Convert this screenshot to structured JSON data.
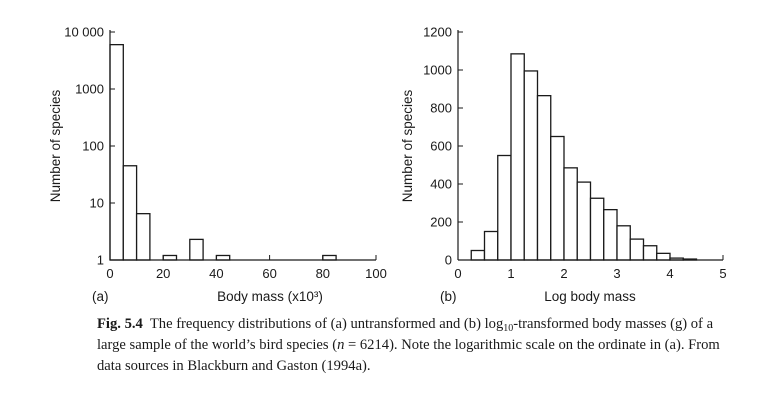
{
  "chart_data": [
    {
      "type": "bar",
      "panel_label": "(a)",
      "xlabel": "Body mass (x10³)",
      "ylabel": "Number of species",
      "yscale": "log",
      "xlim": [
        0,
        100
      ],
      "ylim": [
        1,
        10000
      ],
      "xticks": [
        "0",
        "20",
        "40",
        "60",
        "80",
        "100"
      ],
      "yticks": [
        "1",
        "10",
        "100",
        "1000",
        "10 000"
      ],
      "bins": [
        {
          "x0": 0,
          "x1": 5,
          "value": 6000
        },
        {
          "x0": 5,
          "x1": 10,
          "value": 45
        },
        {
          "x0": 10,
          "x1": 15,
          "value": 6.5
        },
        {
          "x0": 20,
          "x1": 25,
          "value": 1.2
        },
        {
          "x0": 30,
          "x1": 35,
          "value": 2.3
        },
        {
          "x0": 40,
          "x1": 45,
          "value": 1.2
        },
        {
          "x0": 80,
          "x1": 85,
          "value": 1.2
        }
      ]
    },
    {
      "type": "bar",
      "panel_label": "(b)",
      "xlabel": "Log body mass",
      "ylabel": "Number of species",
      "yscale": "linear",
      "xlim": [
        0,
        5
      ],
      "ylim": [
        0,
        1200
      ],
      "xticks": [
        "0",
        "1",
        "2",
        "3",
        "4",
        "5"
      ],
      "yticks": [
        "0",
        "200",
        "400",
        "600",
        "800",
        "1000",
        "1200"
      ],
      "bins": [
        {
          "x0": 0.25,
          "x1": 0.5,
          "value": 50
        },
        {
          "x0": 0.5,
          "x1": 0.75,
          "value": 150
        },
        {
          "x0": 0.75,
          "x1": 1.0,
          "value": 550
        },
        {
          "x0": 1.0,
          "x1": 1.25,
          "value": 1085
        },
        {
          "x0": 1.25,
          "x1": 1.5,
          "value": 995
        },
        {
          "x0": 1.5,
          "x1": 1.75,
          "value": 865
        },
        {
          "x0": 1.75,
          "x1": 2.0,
          "value": 650
        },
        {
          "x0": 2.0,
          "x1": 2.25,
          "value": 485
        },
        {
          "x0": 2.25,
          "x1": 2.5,
          "value": 410
        },
        {
          "x0": 2.5,
          "x1": 2.75,
          "value": 325
        },
        {
          "x0": 2.75,
          "x1": 3.0,
          "value": 265
        },
        {
          "x0": 3.0,
          "x1": 3.25,
          "value": 180
        },
        {
          "x0": 3.25,
          "x1": 3.5,
          "value": 110
        },
        {
          "x0": 3.5,
          "x1": 3.75,
          "value": 75
        },
        {
          "x0": 3.75,
          "x1": 4.0,
          "value": 35
        },
        {
          "x0": 4.0,
          "x1": 4.25,
          "value": 10
        },
        {
          "x0": 4.25,
          "x1": 4.5,
          "value": 5
        }
      ]
    }
  ],
  "caption": {
    "label": "Fig. 5.4",
    "part1": "The frequency distributions of (a) untransformed and (b) log",
    "sub": "10",
    "part2": "-transformed body masses (g) of a large sample of the world’s bird species (",
    "n_symbol": "n",
    "part3": " = 6214). Note the logarithmic scale on the ordinate in (a). From data sources in Blackburn and Gaston (1994a)."
  }
}
